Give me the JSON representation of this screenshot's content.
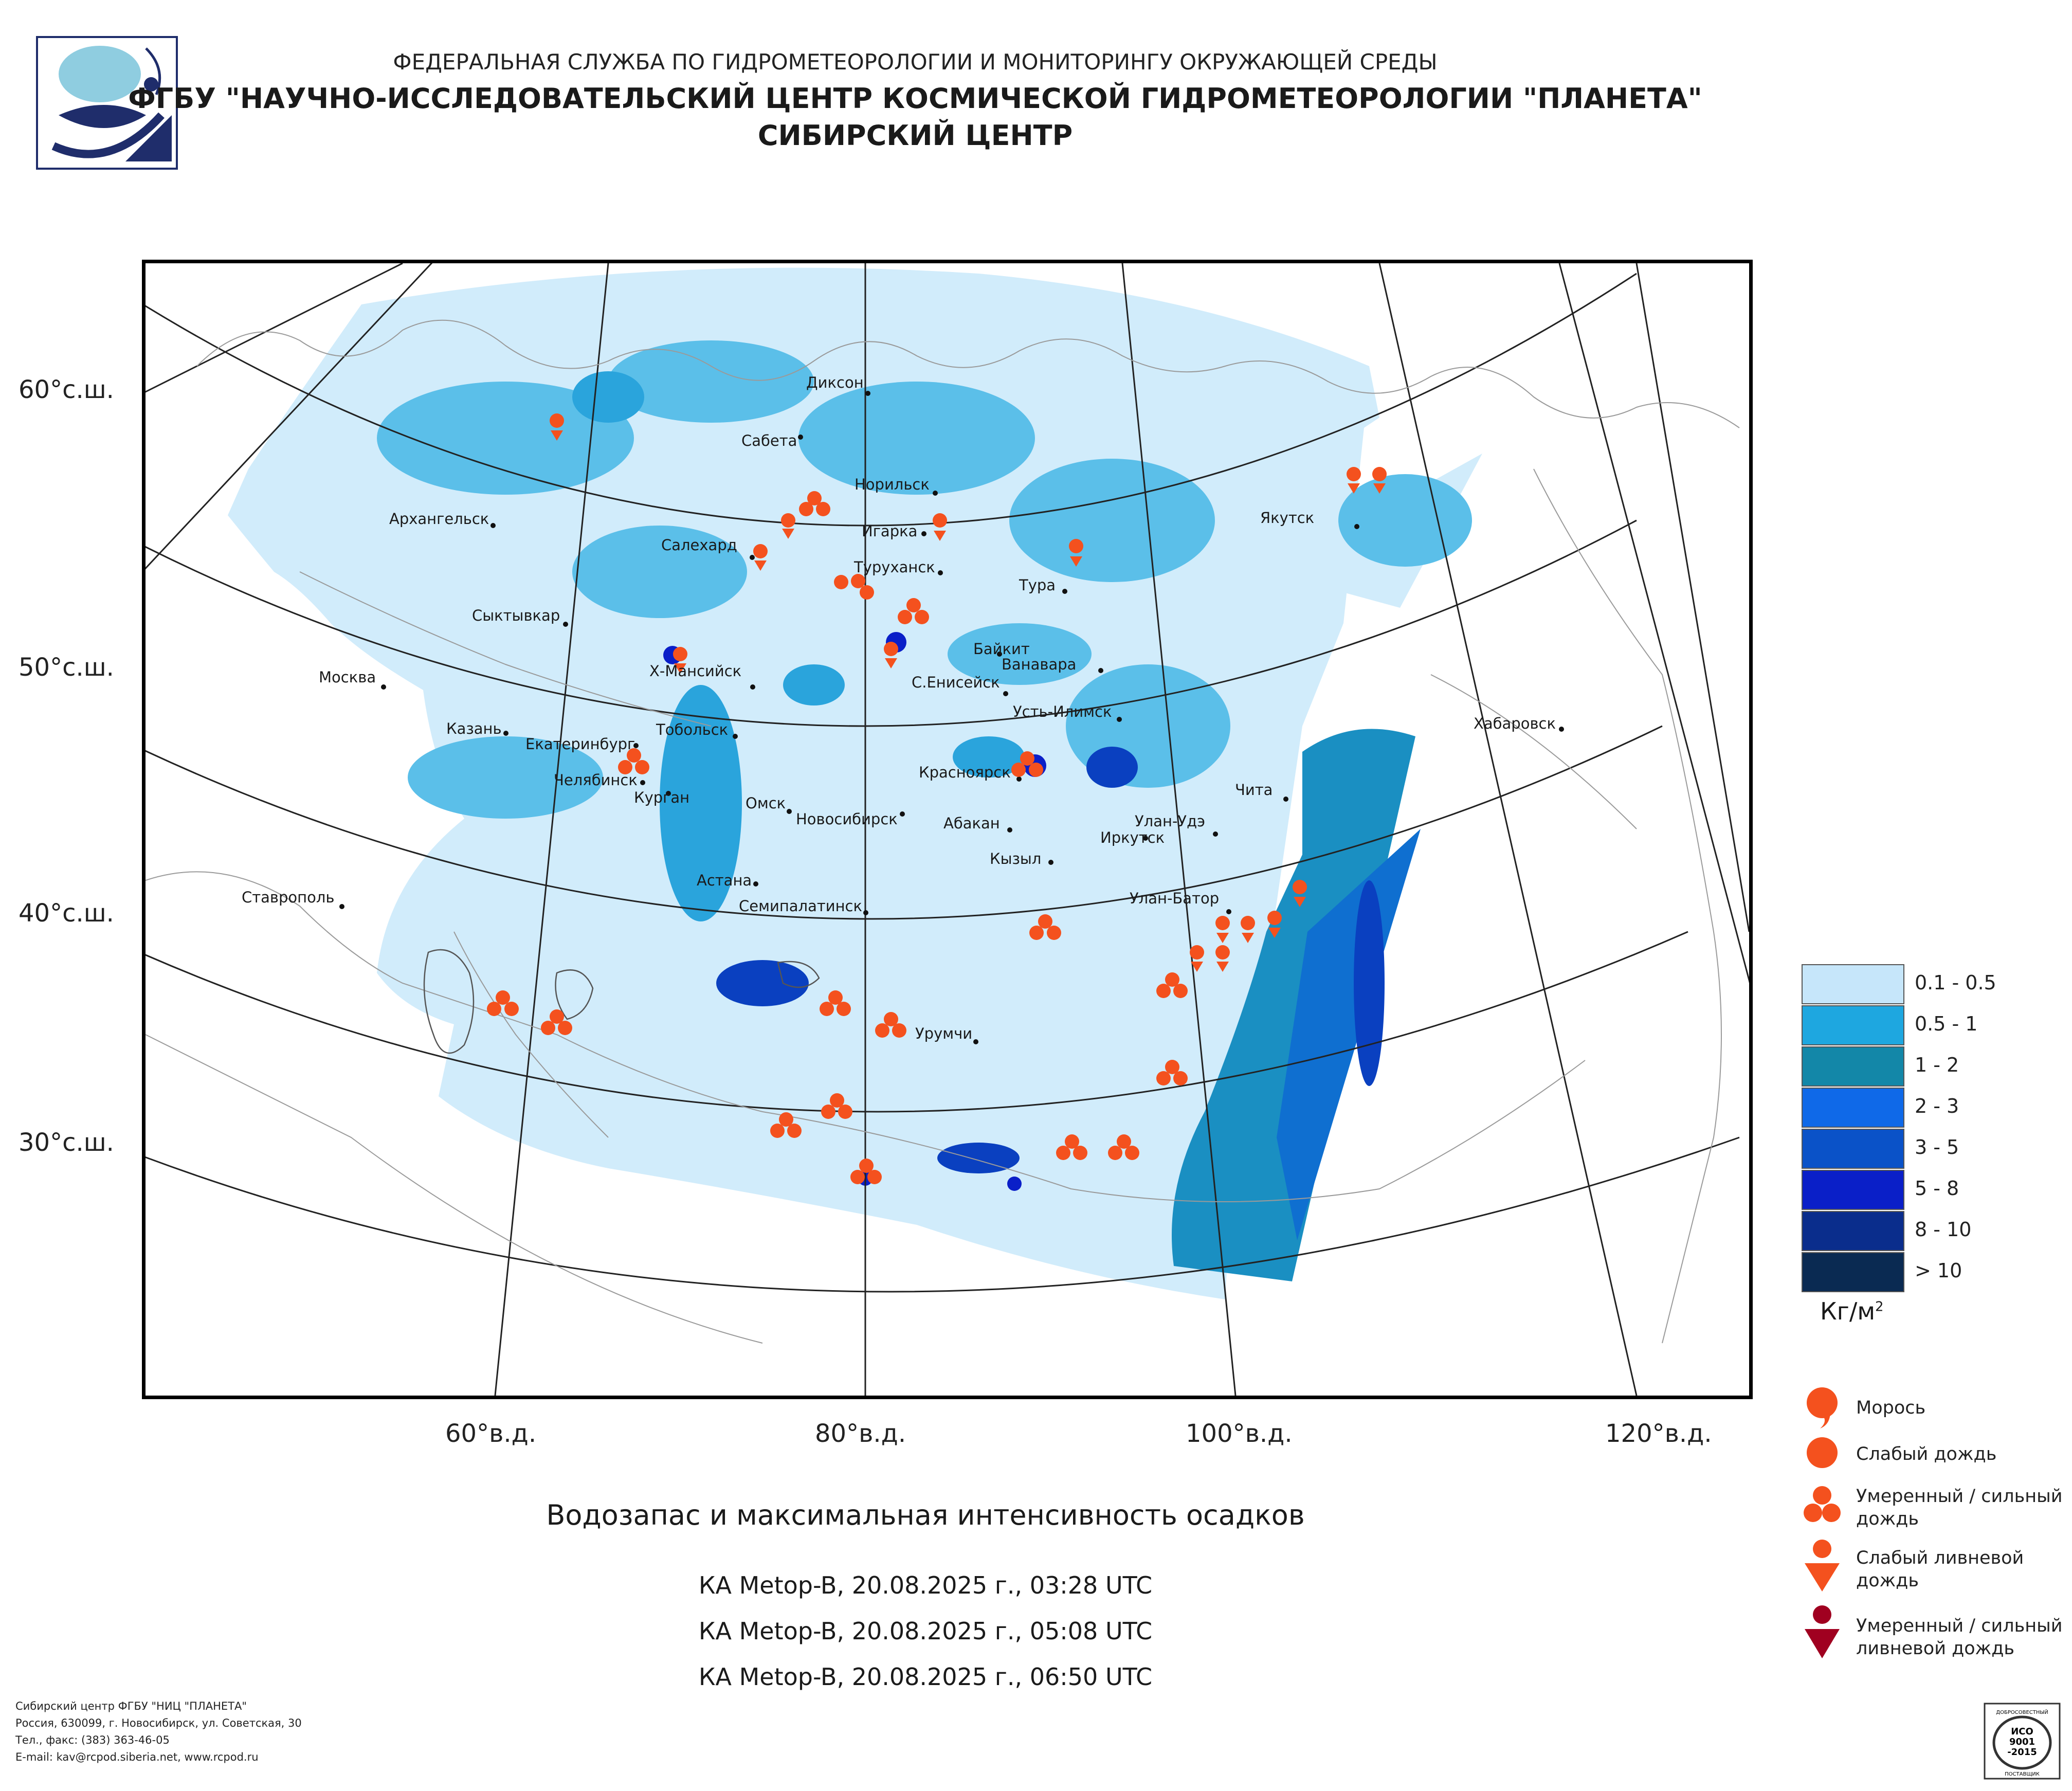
{
  "header": {
    "line1": "ФЕДЕРАЛЬНАЯ СЛУЖБА ПО ГИДРОМЕТЕОРОЛОГИИ И МОНИТОРИНГУ ОКРУЖАЮЩЕЙ СРЕДЫ",
    "line2": "ФГБУ \"НАУЧНО-ИССЛЕДОВАТЕЛЬСКИЙ ЦЕНТР КОСМИЧЕСКОЙ ГИДРОМЕТЕОРОЛОГИИ \"ПЛАНЕТА\"",
    "line3": "СИБИРСКИЙ ЦЕНТР"
  },
  "axes": {
    "lat_labels": [
      "60°с.ш.",
      "50°с.ш.",
      "40°с.ш.",
      "30°с.ш."
    ],
    "lon_labels": [
      "60°в.д.",
      "80°в.д.",
      "100°в.д.",
      "120°в.д."
    ]
  },
  "cities": [
    "Диксон",
    "Сабета",
    "Норильск",
    "Архангельск",
    "Игарка",
    "Салехард",
    "Туруханск",
    "Якутск",
    "Тура",
    "Сыктывкар",
    "Байкит",
    "Ванавара",
    "Х-Мансийск",
    "Москва",
    "С.Енисейск",
    "Усть-Илимск",
    "Казань",
    "Тобольск",
    "Екатеринбург",
    "Хабаровск",
    "Красноярск",
    "Челябинск",
    "Курган",
    "Чита",
    "Омск",
    "Новосибирск",
    "Абакан",
    "Улан-Удэ",
    "Иркутск",
    "Кызыл",
    "Астана",
    "Ставрополь",
    "Семипалатинск",
    "Улан-Батор",
    "Урумчи"
  ],
  "legend": {
    "scale": [
      {
        "label": "0.1 - 0.5",
        "color": "#c6e6fa"
      },
      {
        "label": "0.5 - 1",
        "color": "#1ea7e0"
      },
      {
        "label": "1 - 2",
        "color": "#1387a8"
      },
      {
        "label": "2 - 3",
        "color": "#0f69e8"
      },
      {
        "label": "3 - 5",
        "color": "#0a52c8"
      },
      {
        "label": "5 - 8",
        "color": "#0a1fc8"
      },
      {
        "label": "8 - 10",
        "color": "#0a2d8c"
      },
      {
        "label": "> 10",
        "color": "#0a2a52"
      }
    ],
    "unit": "Кг/м",
    "unit_sup": "2",
    "symbols": [
      {
        "label": "Морось",
        "icon": "drizzle-icon"
      },
      {
        "label": "Слабый дождь",
        "icon": "light-rain-icon"
      },
      {
        "label": "Умеренный / сильный дождь",
        "icon": "moderate-rain-icon"
      },
      {
        "label": "Слабый ливневой дождь",
        "icon": "light-shower-icon"
      },
      {
        "label": "Умеренный / сильный ливневой дождь",
        "icon": "heavy-shower-icon"
      }
    ]
  },
  "caption": {
    "title": "Водозапас и максимальная интенсивность осадков",
    "passes": [
      "КА Metop-B, 20.08.2025 г., 03:28 UTC",
      "КА Metop-B, 20.08.2025 г., 05:08 UTC",
      "КА Metop-B, 20.08.2025 г., 06:50 UTC"
    ]
  },
  "footer": [
    "Сибирский центр ФГБУ \"НИЦ \"ПЛАНЕТА\"",
    "Россия, 630099, г. Новосибирск, ул. Советская, 30",
    "Тел., факс: (383) 363-46-05",
    "E-mail: kav@rcpod.siberia.net, www.rcpod.ru"
  ],
  "iso_badge": {
    "top": "ДОБРОСОВЕСТНЫЙ",
    "l1": "ИСО",
    "l2": "9001",
    "l3": "-2015",
    "bottom": "ПОСТАВЩИК"
  },
  "colors": {
    "symbol_orange": "#f4511e",
    "symbol_dark": "#a00020"
  }
}
